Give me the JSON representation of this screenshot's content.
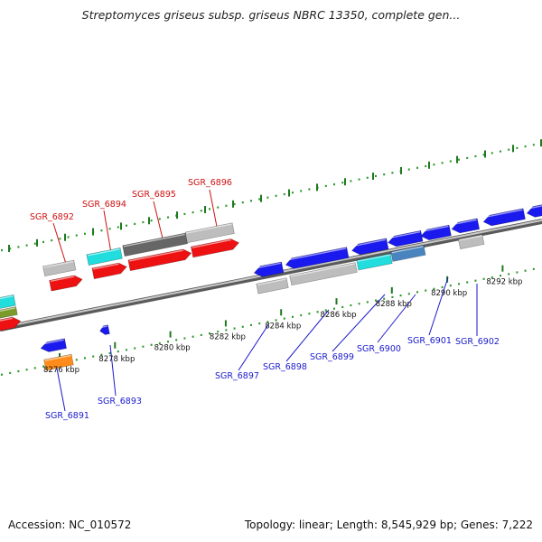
{
  "title": "Streptomyces griseus subsp. griseus NBRC 13350, complete gen...",
  "footer": {
    "accession": "Accession: NC_010572",
    "topology": "Topology: linear; Length: 8,545,929 bp; Genes: 7,222"
  },
  "colors": {
    "backbone": "#9a9a9a",
    "tick_dot": "#2e9a2e",
    "tick_major": "#1e7a1e",
    "label_red": "#cc1111",
    "label_blue": "#1a1acc",
    "gene_red": "#ee1111",
    "gene_blue": "#1a1aee",
    "gene_cyan": "#22dddd",
    "gene_steel": "#4a84be",
    "gene_gray": "#bdbdbd",
    "gene_darkgray": "#666666",
    "gene_orange": "#ff8c1a",
    "gene_olive": "#7a9a2a"
  },
  "scale": {
    "ticks": [
      {
        "label": "8276 kbp"
      },
      {
        "label": "8278 kbp"
      },
      {
        "label": "8280 kbp"
      },
      {
        "label": "8282 kbp"
      },
      {
        "label": "8284 kbp"
      },
      {
        "label": "8286 kbp"
      },
      {
        "label": "8288 kbp"
      },
      {
        "label": "8290 kbp"
      },
      {
        "label": "8292 kbp"
      }
    ]
  },
  "gene_labels": [
    {
      "name": "SGR_6891",
      "strand": "reverse"
    },
    {
      "name": "SGR_6892",
      "strand": "forward"
    },
    {
      "name": "SGR_6893",
      "strand": "reverse"
    },
    {
      "name": "SGR_6894",
      "strand": "forward"
    },
    {
      "name": "SGR_6895",
      "strand": "forward"
    },
    {
      "name": "SGR_6896",
      "strand": "forward"
    },
    {
      "name": "SGR_6897",
      "strand": "reverse"
    },
    {
      "name": "SGR_6898",
      "strand": "reverse"
    },
    {
      "name": "SGR_6899",
      "strand": "reverse"
    },
    {
      "name": "SGR_6900",
      "strand": "reverse"
    },
    {
      "name": "SGR_6901",
      "strand": "reverse"
    },
    {
      "name": "SGR_6902",
      "strand": "reverse"
    }
  ]
}
